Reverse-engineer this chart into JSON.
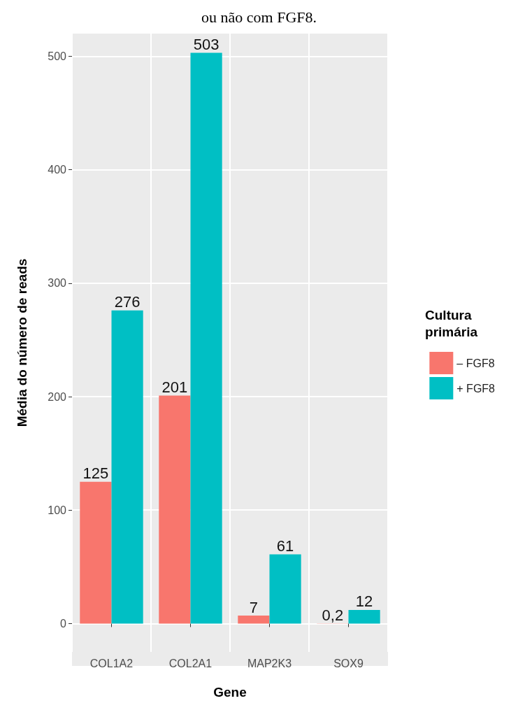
{
  "chart_data": {
    "type": "bar",
    "title": "ou não com FGF8.",
    "xlabel": "Gene",
    "ylabel": "Média do número de reads",
    "legend_title": "Cultura primária",
    "categories": [
      "COL1A2",
      "COL2A1",
      "MAP2K3",
      "SOX9"
    ],
    "series": [
      {
        "name": "– FGF8",
        "color": "#f8766d",
        "values": [
          125,
          201,
          7,
          0.2
        ],
        "value_labels": [
          "125",
          "201",
          "7",
          "0,2"
        ]
      },
      {
        "name": "+ FGF8",
        "color": "#00bfc4",
        "values": [
          276,
          503,
          61,
          12
        ],
        "value_labels": [
          "276",
          "503",
          "61",
          "12"
        ]
      }
    ],
    "ylim": [
      -25,
      520
    ],
    "yticks": [
      0,
      100,
      200,
      300,
      400,
      500
    ],
    "grid": true,
    "legend": "right"
  }
}
